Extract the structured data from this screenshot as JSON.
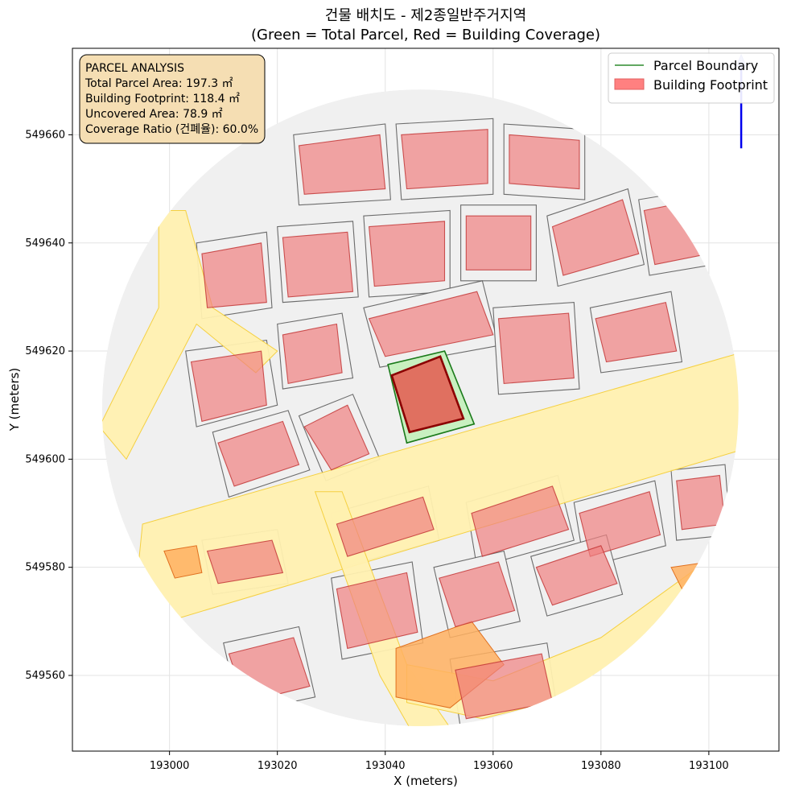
{
  "title_line1": "건물 배치도 - 제2종일반주거지역",
  "title_line2": "(Green = Total Parcel, Red = Building Coverage)",
  "chart_data": {
    "type": "scatter",
    "xlabel": "X (meters)",
    "ylabel": "Y (meters)",
    "xlim": [
      192982,
      193113
    ],
    "ylim": [
      549546,
      549676
    ],
    "xticks": [
      193000,
      193020,
      193040,
      193060,
      193080,
      193100
    ],
    "xtick_labels": [
      "193000",
      "193020",
      "193040",
      "193060",
      "193080",
      "193100"
    ],
    "yticks": [
      549560,
      549580,
      549600,
      549620,
      549640,
      549660
    ],
    "ytick_labels": [
      "549560",
      "549580",
      "549600",
      "549620",
      "549640",
      "549660"
    ],
    "grid": true,
    "legend_position": "top-right",
    "legend": [
      {
        "label": "Parcel Boundary",
        "color": "#2e8b2e",
        "kind": "line"
      },
      {
        "label": "Building Footprint",
        "color": "#ff8080",
        "kind": "patch"
      }
    ],
    "target_parcel": [
      [
        193040.5,
        549617.5
      ],
      [
        193051,
        549620
      ],
      [
        193056.5,
        549606.5
      ],
      [
        193044,
        549603
      ]
    ],
    "target_building": [
      [
        193041.2,
        549615.5
      ],
      [
        193050.2,
        549619
      ],
      [
        193054.5,
        549607.5
      ],
      [
        193044.5,
        549605
      ]
    ],
    "clip_center": [
      193046.5,
      549609.5
    ],
    "clip_radius": 59,
    "roads": [
      [
        [
          192995,
          549588
        ],
        [
          193107,
          549620
        ],
        [
          193107,
          549602
        ],
        [
          192993,
          549568
        ]
      ],
      [
        [
          192998,
          549646
        ],
        [
          193003,
          549646
        ],
        [
          193008,
          549628
        ],
        [
          193020,
          549620
        ],
        [
          193016,
          549616
        ],
        [
          193005,
          549625
        ],
        [
          192992,
          549600
        ],
        [
          192987,
          549606
        ],
        [
          192998,
          549628
        ]
      ],
      [
        [
          193027,
          549594
        ],
        [
          193032,
          549594
        ],
        [
          193044,
          549562
        ],
        [
          193055,
          549546
        ],
        [
          193047,
          549546
        ],
        [
          193039,
          549560
        ]
      ],
      [
        [
          193044,
          549562
        ],
        [
          193060,
          549559
        ],
        [
          193080,
          549567
        ],
        [
          193098,
          549580
        ],
        [
          193104,
          549574
        ],
        [
          193082,
          549558
        ],
        [
          193058,
          549552
        ],
        [
          193044,
          549555
        ]
      ]
    ],
    "road_style": {
      "fill": "#fff0b0",
      "stroke": "#f5d040"
    },
    "orange_patches": [
      [
        [
          193042,
          549565
        ],
        [
          193056,
          549570
        ],
        [
          193062,
          549562
        ],
        [
          193052,
          549554
        ],
        [
          193042,
          549556
        ]
      ],
      [
        [
          192999,
          549583
        ],
        [
          193005,
          549584
        ],
        [
          193006,
          549579
        ],
        [
          193001,
          549578
        ]
      ],
      [
        [
          193093,
          549580
        ],
        [
          193100,
          549581
        ],
        [
          193102,
          549577
        ],
        [
          193095,
          549576
        ]
      ]
    ],
    "orange_style": {
      "fill": "#ffb060",
      "stroke": "#e07020"
    },
    "parcels": [
      [
        [
          193003,
          549620
        ],
        [
          193018,
          549622
        ],
        [
          193020,
          549610
        ],
        [
          193005,
          549606
        ]
      ],
      [
        [
          193020,
          549625
        ],
        [
          193032,
          549627
        ],
        [
          193034,
          549615
        ],
        [
          193021,
          549613
        ]
      ],
      [
        [
          193005,
          549640
        ],
        [
          193018,
          549642
        ],
        [
          193019,
          549628
        ],
        [
          193006,
          549626
        ]
      ],
      [
        [
          193020,
          549643
        ],
        [
          193034,
          549644
        ],
        [
          193035,
          549630
        ],
        [
          193021,
          549629
        ]
      ],
      [
        [
          193036,
          549645
        ],
        [
          193052,
          549646
        ],
        [
          193052,
          549631
        ],
        [
          193037,
          549630
        ]
      ],
      [
        [
          193054,
          549647
        ],
        [
          193068,
          549647
        ],
        [
          193068,
          549633
        ],
        [
          193054,
          549633
        ]
      ],
      [
        [
          193070,
          549645
        ],
        [
          193085,
          549650
        ],
        [
          193088,
          549636
        ],
        [
          193072,
          549632
        ]
      ],
      [
        [
          193087,
          549648
        ],
        [
          193099,
          549650
        ],
        [
          193101,
          549636
        ],
        [
          193089,
          549634
        ]
      ],
      [
        [
          193023,
          549660
        ],
        [
          193040,
          549662
        ],
        [
          193041,
          549648
        ],
        [
          193024,
          549647
        ]
      ],
      [
        [
          193042,
          549662
        ],
        [
          193060,
          549663
        ],
        [
          193060,
          549649
        ],
        [
          193043,
          549648
        ]
      ],
      [
        [
          193062,
          549662
        ],
        [
          193077,
          549661
        ],
        [
          193077,
          549648
        ],
        [
          193062,
          549649
        ]
      ],
      [
        [
          193036,
          549628
        ],
        [
          193058,
          549633
        ],
        [
          193061,
          549621
        ],
        [
          193039,
          549617
        ]
      ],
      [
        [
          193060,
          549628
        ],
        [
          193075,
          549629
        ],
        [
          193076,
          549613
        ],
        [
          193061,
          549612
        ]
      ],
      [
        [
          193078,
          549628
        ],
        [
          193093,
          549631
        ],
        [
          193095,
          549618
        ],
        [
          193080,
          549616
        ]
      ],
      [
        [
          193008,
          549605
        ],
        [
          193022,
          549609
        ],
        [
          193026,
          549598
        ],
        [
          193011,
          549593
        ]
      ],
      [
        [
          193024,
          549608
        ],
        [
          193034,
          549612
        ],
        [
          193039,
          549600
        ],
        [
          193029,
          549596
        ]
      ],
      [
        [
          193030,
          549590
        ],
        [
          193048,
          549595
        ],
        [
          193050,
          549585
        ],
        [
          193032,
          549580
        ]
      ],
      [
        [
          193055,
          549592
        ],
        [
          193072,
          549597
        ],
        [
          193075,
          549585
        ],
        [
          193057,
          549580
        ]
      ],
      [
        [
          193075,
          549592
        ],
        [
          193090,
          549596
        ],
        [
          193092,
          549584
        ],
        [
          193077,
          549580
        ]
      ],
      [
        [
          193093,
          549598
        ],
        [
          193103,
          549599
        ],
        [
          193104,
          549586
        ],
        [
          193094,
          549585
        ]
      ],
      [
        [
          193006,
          549585
        ],
        [
          193020,
          549587
        ],
        [
          193022,
          549577
        ],
        [
          193008,
          549575
        ]
      ],
      [
        [
          193030,
          549578
        ],
        [
          193045,
          549581
        ],
        [
          193047,
          549566
        ],
        [
          193032,
          549563
        ]
      ],
      [
        [
          193049,
          549580
        ],
        [
          193062,
          549583
        ],
        [
          193065,
          549570
        ],
        [
          193052,
          549567
        ]
      ],
      [
        [
          193067,
          549582
        ],
        [
          193081,
          549586
        ],
        [
          193084,
          549575
        ],
        [
          193070,
          549571
        ]
      ],
      [
        [
          193010,
          549566
        ],
        [
          193024,
          549569
        ],
        [
          193027,
          549556
        ],
        [
          193013,
          549553
        ]
      ],
      [
        [
          193052,
          549563
        ],
        [
          193070,
          549566
        ],
        [
          193072,
          549553
        ],
        [
          193054,
          549550
        ]
      ]
    ],
    "parcel_style": {
      "fill": "#f0f0f0",
      "stroke": "#555555"
    },
    "buildings": [
      [
        [
          193004,
          549618
        ],
        [
          193017,
          549620
        ],
        [
          193018,
          549610
        ],
        [
          193006,
          549607
        ]
      ],
      [
        [
          193021,
          549623
        ],
        [
          193031,
          549625
        ],
        [
          193032,
          549616
        ],
        [
          193022,
          549614
        ]
      ],
      [
        [
          193006,
          549638
        ],
        [
          193017,
          549640
        ],
        [
          193018,
          549629
        ],
        [
          193007,
          549628
        ]
      ],
      [
        [
          193021,
          549641
        ],
        [
          193033,
          549642
        ],
        [
          193034,
          549631
        ],
        [
          193022,
          549630
        ]
      ],
      [
        [
          193037,
          549643
        ],
        [
          193051,
          549644
        ],
        [
          193051,
          549633
        ],
        [
          193038,
          549632
        ]
      ],
      [
        [
          193055,
          549645
        ],
        [
          193067,
          549645
        ],
        [
          193067,
          549635
        ],
        [
          193055,
          549635
        ]
      ],
      [
        [
          193071,
          549643
        ],
        [
          193084,
          549648
        ],
        [
          193087,
          549638
        ],
        [
          193073,
          549634
        ]
      ],
      [
        [
          193088,
          549646
        ],
        [
          193098,
          549648
        ],
        [
          193100,
          549638
        ],
        [
          193090,
          549636
        ]
      ],
      [
        [
          193024,
          549658
        ],
        [
          193039,
          549660
        ],
        [
          193040,
          549650
        ],
        [
          193025,
          549649
        ]
      ],
      [
        [
          193043,
          549660
        ],
        [
          193059,
          549661
        ],
        [
          193059,
          549651
        ],
        [
          193044,
          549650
        ]
      ],
      [
        [
          193063,
          549660
        ],
        [
          193076,
          549659
        ],
        [
          193076,
          549650
        ],
        [
          193063,
          549651
        ]
      ],
      [
        [
          193037,
          549626
        ],
        [
          193057,
          549631
        ],
        [
          193060,
          549623
        ],
        [
          193040,
          549619
        ]
      ],
      [
        [
          193061,
          549626
        ],
        [
          193074,
          549627
        ],
        [
          193075,
          549615
        ],
        [
          193062,
          549614
        ]
      ],
      [
        [
          193079,
          549626
        ],
        [
          193092,
          549629
        ],
        [
          193094,
          549620
        ],
        [
          193081,
          549618
        ]
      ],
      [
        [
          193009,
          549603
        ],
        [
          193021,
          549607
        ],
        [
          193024,
          549599
        ],
        [
          193012,
          549595
        ]
      ],
      [
        [
          193025,
          549606
        ],
        [
          193033,
          549610
        ],
        [
          193037,
          549601
        ],
        [
          193030,
          549598
        ]
      ],
      [
        [
          193031,
          549588
        ],
        [
          193047,
          549593
        ],
        [
          193049,
          549587
        ],
        [
          193033,
          549582
        ]
      ],
      [
        [
          193056,
          549590
        ],
        [
          193071,
          549595
        ],
        [
          193074,
          549587
        ],
        [
          193058,
          549582
        ]
      ],
      [
        [
          193076,
          549590
        ],
        [
          193089,
          549594
        ],
        [
          193091,
          549586
        ],
        [
          193078,
          549582
        ]
      ],
      [
        [
          193094,
          549596
        ],
        [
          193102,
          549597
        ],
        [
          193103,
          549588
        ],
        [
          193095,
          549587
        ]
      ],
      [
        [
          193007,
          549583
        ],
        [
          193019,
          549585
        ],
        [
          193021,
          549579
        ],
        [
          193009,
          549577
        ]
      ],
      [
        [
          193031,
          549576
        ],
        [
          193044,
          549579
        ],
        [
          193046,
          549568
        ],
        [
          193033,
          549565
        ]
      ],
      [
        [
          193050,
          549578
        ],
        [
          193061,
          549581
        ],
        [
          193064,
          549572
        ],
        [
          193053,
          549569
        ]
      ],
      [
        [
          193068,
          549580
        ],
        [
          193080,
          549584
        ],
        [
          193083,
          549577
        ],
        [
          193071,
          549573
        ]
      ],
      [
        [
          193011,
          549564
        ],
        [
          193023,
          549567
        ],
        [
          193026,
          549558
        ],
        [
          193014,
          549555
        ]
      ],
      [
        [
          193053,
          549561
        ],
        [
          193069,
          549564
        ],
        [
          193071,
          549555
        ],
        [
          193055,
          549552
        ]
      ]
    ],
    "building_style": {
      "fill": "#f08080",
      "stroke": "#c03030"
    },
    "north_arrow": [
      [
        193106,
        549657.5
      ],
      [
        193106,
        549674.5
      ]
    ],
    "info_box": {
      "title": "PARCEL ANALYSIS",
      "lines": [
        "Total Parcel Area: 197.3 ㎡",
        "Building Footprint: 118.4 ㎡",
        "Uncovered Area: 78.9 ㎡",
        "Coverage Ratio (건폐율): 60.0%"
      ]
    }
  }
}
